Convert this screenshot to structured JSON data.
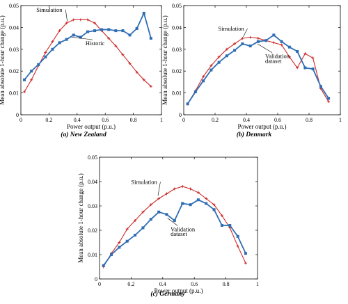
{
  "chart_data": [
    {
      "type": "line",
      "caption": "(a) New Zealand",
      "xlabel": "Power output (p.u.)",
      "ylabel": "Mean absolute 1-hour change (p.u.)",
      "xlim": [
        0,
        1
      ],
      "ylim": [
        0,
        0.05
      ],
      "xticks": [
        "0",
        "0.2",
        "0.4",
        "0.6",
        "0.8",
        "1"
      ],
      "yticks": [
        "0",
        "0.01",
        "0.02",
        "0.03",
        "0.04",
        "0.05"
      ],
      "grid": false,
      "colors": {
        "simulation": "#cc2a2a",
        "historic": "#2e6db4"
      },
      "series": [
        {
          "name": "Simulation",
          "marker": "plus",
          "x": [
            0.025,
            0.075,
            0.125,
            0.175,
            0.225,
            0.275,
            0.325,
            0.375,
            0.425,
            0.475,
            0.525,
            0.575,
            0.625,
            0.675,
            0.725,
            0.775,
            0.825,
            0.875,
            0.925
          ],
          "y": [
            0.0105,
            0.016,
            0.0225,
            0.0285,
            0.0335,
            0.0385,
            0.042,
            0.0435,
            0.0435,
            0.0435,
            0.042,
            0.0385,
            0.035,
            0.0315,
            0.0275,
            0.0235,
            0.0195,
            0.016,
            0.013
          ]
        },
        {
          "name": "Historic",
          "marker": "square",
          "x": [
            0.025,
            0.075,
            0.125,
            0.175,
            0.225,
            0.275,
            0.325,
            0.375,
            0.425,
            0.475,
            0.525,
            0.575,
            0.625,
            0.675,
            0.725,
            0.775,
            0.825,
            0.875,
            0.925
          ],
          "y": [
            0.016,
            0.02,
            0.023,
            0.0265,
            0.03,
            0.033,
            0.0345,
            0.0365,
            0.0355,
            0.038,
            0.0385,
            0.039,
            0.039,
            0.0385,
            0.0385,
            0.0365,
            0.0395,
            0.0465,
            0.035
          ]
        }
      ],
      "annotations": [
        {
          "text": "Simulation",
          "series": 0
        },
        {
          "text": "Historic",
          "series": 1
        }
      ]
    },
    {
      "type": "line",
      "caption": "(b) Denmark",
      "xlabel": "Power output (p.u.)",
      "ylabel": "Mean absolute 1-hour change (p.u.)",
      "xlim": [
        0,
        1
      ],
      "ylim": [
        0,
        0.05
      ],
      "xticks": [
        "0",
        "0.2",
        "0.4",
        "0.6",
        "0.8",
        "1"
      ],
      "yticks": [
        "0",
        "0.01",
        "0.02",
        "0.03",
        "0.04",
        "0.05"
      ],
      "grid": false,
      "colors": {
        "simulation": "#cc2a2a",
        "validation": "#2e6db4"
      },
      "series": [
        {
          "name": "Simulation",
          "marker": "plus",
          "x": [
            0.025,
            0.075,
            0.125,
            0.175,
            0.225,
            0.275,
            0.325,
            0.375,
            0.425,
            0.475,
            0.525,
            0.575,
            0.625,
            0.675,
            0.725,
            0.775,
            0.825,
            0.875,
            0.925
          ],
          "y": [
            0.005,
            0.011,
            0.0175,
            0.0225,
            0.0265,
            0.03,
            0.0325,
            0.035,
            0.0355,
            0.035,
            0.034,
            0.033,
            0.032,
            0.0265,
            0.0215,
            0.028,
            0.026,
            0.012,
            0.006
          ]
        },
        {
          "name": "Validation dataset",
          "marker": "square",
          "x": [
            0.025,
            0.075,
            0.125,
            0.175,
            0.225,
            0.275,
            0.325,
            0.375,
            0.425,
            0.475,
            0.525,
            0.575,
            0.625,
            0.675,
            0.725,
            0.775,
            0.825,
            0.875,
            0.925
          ],
          "y": [
            0.005,
            0.0105,
            0.0155,
            0.0205,
            0.024,
            0.027,
            0.0295,
            0.0325,
            0.0315,
            0.0335,
            0.034,
            0.0365,
            0.0335,
            0.031,
            0.029,
            0.0215,
            0.021,
            0.013,
            0.0075
          ]
        }
      ],
      "annotations": [
        {
          "text": "Simulation",
          "series": 0
        },
        {
          "text": "Validation",
          "series": 1
        },
        {
          "text": "dataset",
          "series": 1
        }
      ]
    },
    {
      "type": "line",
      "caption": "(c) Germany",
      "xlabel": "Power output (p.u.)",
      "ylabel": "Mean absolute 1-hour change (p.u.)",
      "xlim": [
        0,
        1
      ],
      "ylim": [
        0,
        0.05
      ],
      "xticks": [
        "0",
        "0.2",
        "0.4",
        "0.6",
        "0.8",
        "1"
      ],
      "yticks": [
        "0",
        "0.01",
        "0.02",
        "0.03",
        "0.04",
        "0.05"
      ],
      "grid": false,
      "colors": {
        "simulation": "#cc2a2a",
        "validation": "#2e6db4"
      },
      "series": [
        {
          "name": "Simulation",
          "marker": "plus",
          "x": [
            0.025,
            0.075,
            0.125,
            0.175,
            0.225,
            0.275,
            0.325,
            0.375,
            0.425,
            0.475,
            0.525,
            0.575,
            0.625,
            0.675,
            0.725,
            0.775,
            0.825,
            0.875,
            0.925
          ],
          "y": [
            0.005,
            0.0105,
            0.015,
            0.0205,
            0.024,
            0.0275,
            0.0305,
            0.033,
            0.035,
            0.037,
            0.038,
            0.037,
            0.0355,
            0.033,
            0.0305,
            0.026,
            0.021,
            0.0135,
            0.0065
          ]
        },
        {
          "name": "Validation dataset",
          "marker": "square",
          "x": [
            0.025,
            0.075,
            0.125,
            0.175,
            0.225,
            0.275,
            0.325,
            0.375,
            0.425,
            0.475,
            0.525,
            0.575,
            0.625,
            0.675,
            0.725,
            0.775,
            0.825,
            0.875,
            0.925
          ],
          "y": [
            0.0055,
            0.01,
            0.013,
            0.0155,
            0.018,
            0.021,
            0.0245,
            0.0275,
            0.0265,
            0.024,
            0.031,
            0.0305,
            0.0325,
            0.031,
            0.0285,
            0.022,
            0.022,
            0.0175,
            0.0105
          ]
        }
      ],
      "annotations": [
        {
          "text": "Simulation",
          "series": 0
        },
        {
          "text": "Validation",
          "series": 1
        },
        {
          "text": "dataset",
          "series": 1
        }
      ]
    }
  ]
}
